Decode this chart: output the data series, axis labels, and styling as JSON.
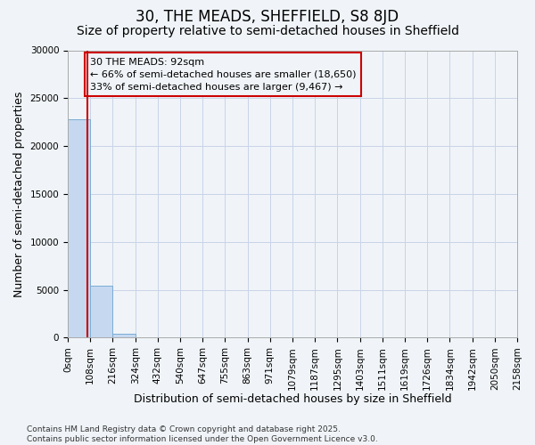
{
  "title": "30, THE MEADS, SHEFFIELD, S8 8JD",
  "subtitle": "Size of property relative to semi-detached houses in Sheffield",
  "xlabel": "Distribution of semi-detached houses by size in Sheffield",
  "ylabel": "Number of semi-detached properties",
  "footnote": "Contains HM Land Registry data © Crown copyright and database right 2025.\nContains public sector information licensed under the Open Government Licence v3.0.",
  "bin_edges": [
    0,
    108,
    216,
    324,
    432,
    540,
    647,
    755,
    863,
    971,
    1079,
    1187,
    1295,
    1403,
    1511,
    1619,
    1726,
    1834,
    1942,
    2050,
    2158
  ],
  "bin_labels": [
    "0sqm",
    "108sqm",
    "216sqm",
    "324sqm",
    "432sqm",
    "540sqm",
    "647sqm",
    "755sqm",
    "863sqm",
    "971sqm",
    "1079sqm",
    "1187sqm",
    "1295sqm",
    "1403sqm",
    "1511sqm",
    "1619sqm",
    "1726sqm",
    "1834sqm",
    "1942sqm",
    "2050sqm",
    "2158sqm"
  ],
  "bar_values": [
    22800,
    5400,
    400,
    80,
    20,
    8,
    4,
    2,
    1,
    1,
    0,
    0,
    0,
    0,
    0,
    0,
    0,
    0,
    0,
    0
  ],
  "bar_color": "#c5d8f0",
  "bar_edge_color": "#7aadd4",
  "ylim": [
    0,
    30000
  ],
  "yticks": [
    0,
    5000,
    10000,
    15000,
    20000,
    25000,
    30000
  ],
  "property_size": 92,
  "property_label": "30 THE MEADS: 92sqm",
  "pct_smaller": 66,
  "count_smaller": 18650,
  "pct_larger": 33,
  "count_larger": 9467,
  "vline_color": "#cc0000",
  "annotation_box_color": "#cc0000",
  "grid_color": "#c8d4e8",
  "background_color": "#f0f4f8",
  "title_fontsize": 12,
  "subtitle_fontsize": 10,
  "axis_label_fontsize": 9,
  "tick_fontsize": 7.5,
  "annotation_fontsize": 8,
  "footnote_fontsize": 6.5
}
